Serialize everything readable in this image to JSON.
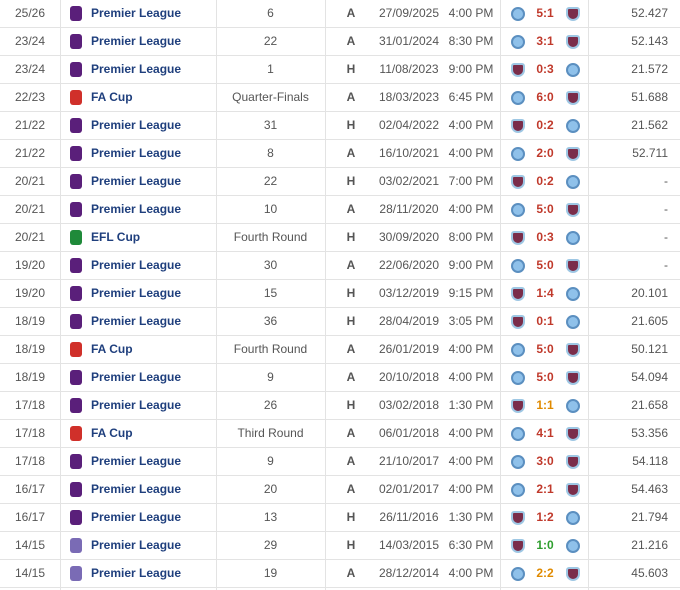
{
  "table": {
    "rows": [
      [
        "25/26",
        "Premier League",
        "6",
        "A",
        "27/09/2025",
        "4:00 PM",
        "5:1",
        "52.427"
      ],
      [
        "23/24",
        "Premier League",
        "22",
        "A",
        "31/01/2024",
        "8:30 PM",
        "3:1",
        "52.143"
      ],
      [
        "23/24",
        "Premier League",
        "1",
        "H",
        "11/08/2023",
        "9:00 PM",
        "0:3",
        "21.572"
      ],
      [
        "22/23",
        "FA Cup",
        "Quarter-Finals",
        "A",
        "18/03/2023",
        "6:45 PM",
        "6:0",
        "51.688"
      ],
      [
        "21/22",
        "Premier League",
        "31",
        "H",
        "02/04/2022",
        "4:00 PM",
        "0:2",
        "21.562"
      ],
      [
        "21/22",
        "Premier League",
        "8",
        "A",
        "16/10/2021",
        "4:00 PM",
        "2:0",
        "52.711"
      ],
      [
        "20/21",
        "Premier League",
        "22",
        "H",
        "03/02/2021",
        "7:00 PM",
        "0:2",
        "-"
      ],
      [
        "20/21",
        "Premier League",
        "10",
        "A",
        "28/11/2020",
        "4:00 PM",
        "5:0",
        "-"
      ],
      [
        "20/21",
        "EFL Cup",
        "Fourth Round",
        "H",
        "30/09/2020",
        "8:00 PM",
        "0:3",
        "-"
      ],
      [
        "19/20",
        "Premier League",
        "30",
        "A",
        "22/06/2020",
        "9:00 PM",
        "5:0",
        "-"
      ],
      [
        "19/20",
        "Premier League",
        "15",
        "H",
        "03/12/2019",
        "9:15 PM",
        "1:4",
        "20.101"
      ],
      [
        "18/19",
        "Premier League",
        "36",
        "H",
        "28/04/2019",
        "3:05 PM",
        "0:1",
        "21.605"
      ],
      [
        "18/19",
        "FA Cup",
        "Fourth Round",
        "A",
        "26/01/2019",
        "4:00 PM",
        "5:0",
        "50.121"
      ],
      [
        "18/19",
        "Premier League",
        "9",
        "A",
        "20/10/2018",
        "4:00 PM",
        "5:0",
        "54.094"
      ],
      [
        "17/18",
        "Premier League",
        "26",
        "H",
        "03/02/2018",
        "1:30 PM",
        "1:1",
        "21.658"
      ],
      [
        "17/18",
        "FA Cup",
        "Third Round",
        "A",
        "06/01/2018",
        "4:00 PM",
        "4:1",
        "53.356"
      ],
      [
        "17/18",
        "Premier League",
        "9",
        "A",
        "21/10/2017",
        "4:00 PM",
        "3:0",
        "54.118"
      ],
      [
        "16/17",
        "Premier League",
        "20",
        "A",
        "02/01/2017",
        "4:00 PM",
        "2:1",
        "54.463"
      ],
      [
        "16/17",
        "Premier League",
        "13",
        "H",
        "26/11/2016",
        "1:30 PM",
        "1:2",
        "21.794"
      ],
      [
        "14/15",
        "Premier League",
        "29",
        "H",
        "14/03/2015",
        "6:30 PM",
        "1:0",
        "21.216"
      ],
      [
        "14/15",
        "Premier League",
        "19",
        "A",
        "28/12/2014",
        "4:00 PM",
        "2:2",
        "45.603"
      ]
    ],
    "score_colors": [
      "#c0392b",
      "#c0392b",
      "#c0392b",
      "#c0392b",
      "#c0392b",
      "#c0392b",
      "#c0392b",
      "#c0392b",
      "#c0392b",
      "#c0392b",
      "#c0392b",
      "#c0392b",
      "#c0392b",
      "#c0392b",
      "#e08a00",
      "#c0392b",
      "#c0392b",
      "#c0392b",
      "#c0392b",
      "#2e9e2e",
      "#e08a00"
    ],
    "icon_colors": [
      "#5a1f7a",
      "#5a1f7a",
      "#5a1f7a",
      "#d0302a",
      "#5a1f7a",
      "#5a1f7a",
      "#5a1f7a",
      "#5a1f7a",
      "#1f8a3a",
      "#5a1f7a",
      "#5a1f7a",
      "#5a1f7a",
      "#d0302a",
      "#5a1f7a",
      "#5a1f7a",
      "#d0302a",
      "#5a1f7a",
      "#5a1f7a",
      "#5a1f7a",
      "#7a6bb5",
      "#7a6bb5"
    ],
    "home_venue": "H"
  }
}
